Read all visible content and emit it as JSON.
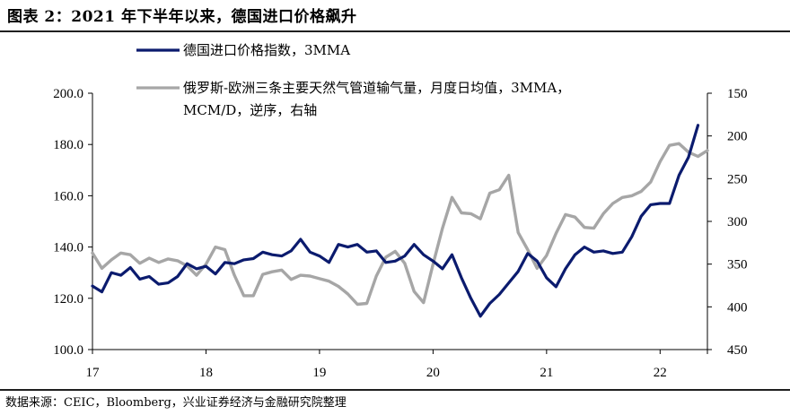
{
  "header": {
    "title": "图表 2：2021 年下半年以来，德国进口价格飙升"
  },
  "footer": {
    "source": "数据来源：CEIC，Bloomberg，兴业证券经济与金融研究院整理"
  },
  "chart_data": {
    "type": "line",
    "grid": false,
    "legend_position": "top",
    "x_axis": {
      "tick_labels": [
        "17",
        "18",
        "19",
        "20",
        "21",
        "22"
      ],
      "range": [
        "2017-01",
        "2022-06"
      ]
    },
    "y_left": {
      "range": [
        100,
        200
      ],
      "tick_values": [
        100,
        120,
        140,
        160,
        180,
        200
      ],
      "tick_labels": [
        "100.0",
        "120.0",
        "140.0",
        "160.0",
        "180.0",
        "200.0"
      ]
    },
    "y_right": {
      "range": [
        150,
        450
      ],
      "reversed": true,
      "tick_values": [
        150,
        200,
        250,
        300,
        350,
        400,
        450
      ],
      "tick_labels": [
        "150",
        "200",
        "250",
        "300",
        "350",
        "400",
        "450"
      ]
    },
    "series": [
      {
        "name": "德国进口价格指数，3MMA",
        "axis": "left",
        "color": "#0b1b6e",
        "start": "2017-01",
        "values": [
          124.8,
          122.5,
          130.0,
          129.0,
          132.0,
          127.5,
          128.5,
          125.5,
          126.0,
          128.5,
          133.5,
          131.5,
          132.5,
          129.5,
          134.0,
          133.5,
          135.0,
          135.5,
          138.0,
          137.0,
          136.5,
          138.5,
          143.0,
          138.0,
          136.5,
          134.0,
          141.0,
          140.0,
          141.0,
          138.0,
          138.5,
          134.0,
          134.5,
          136.5,
          141.0,
          137.0,
          134.5,
          131.5,
          137.0,
          128.0,
          120.0,
          113.0,
          118.0,
          121.5,
          126.0,
          130.5,
          137.5,
          134.5,
          128.0,
          124.5,
          131.5,
          137.0,
          140.0,
          138.0,
          138.5,
          137.5,
          138.0,
          144.0,
          152.0,
          156.5,
          157.0,
          157.0,
          168.0,
          175.0,
          187.5
        ]
      },
      {
        "name": "俄罗斯-欧洲三条主要天然气管道输气量，月度日均值，3MMA，MCM/D，逆序，右轴",
        "axis": "right",
        "color": "#a6a6a6",
        "start": "2017-01",
        "values": [
          337,
          355,
          345,
          337,
          339,
          349,
          343,
          348,
          344,
          346,
          352,
          363,
          350,
          330,
          333,
          363,
          387,
          387,
          362,
          359,
          357,
          368,
          363,
          364,
          367,
          370,
          376,
          385,
          397,
          396,
          364,
          342,
          335,
          349,
          382,
          395,
          350,
          308,
          272,
          290,
          291,
          297,
          267,
          263,
          246,
          313,
          333,
          355,
          340,
          314,
          292,
          295,
          307,
          308,
          291,
          279,
          272,
          270,
          265,
          254,
          230,
          211,
          209,
          219,
          224,
          217
        ]
      }
    ]
  }
}
